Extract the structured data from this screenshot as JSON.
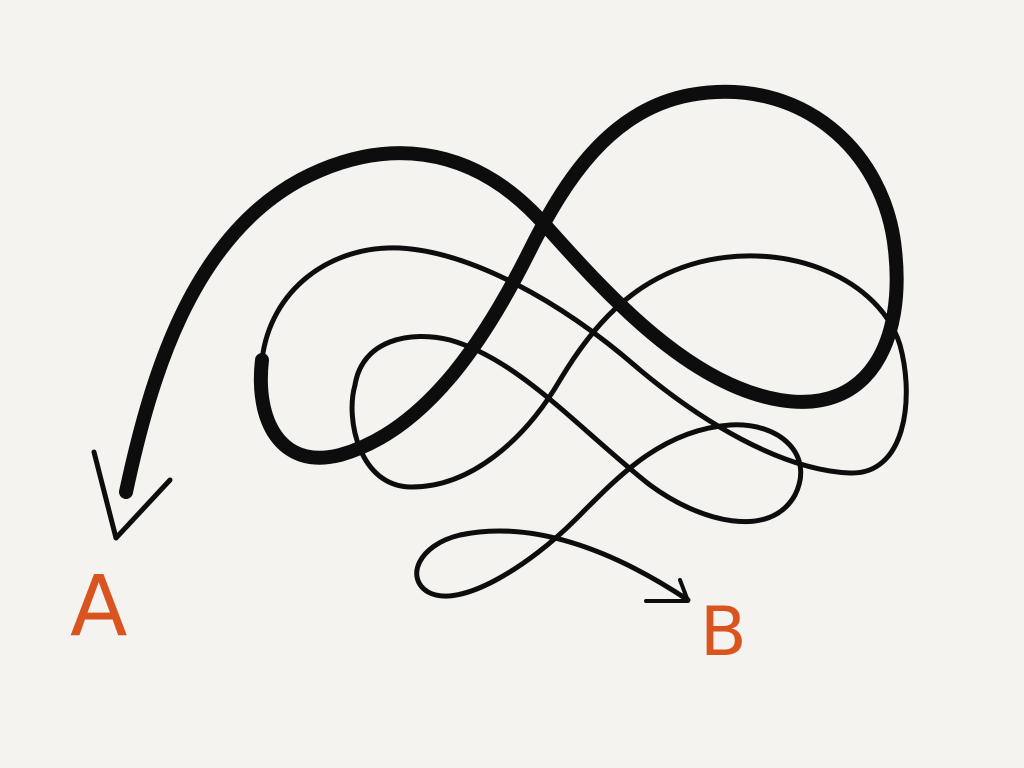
{
  "labels": {
    "start": "A",
    "end": "B"
  },
  "colors": {
    "background": "#f4f3ef",
    "ink": "#0d0d0d",
    "label": "#d9541e"
  }
}
